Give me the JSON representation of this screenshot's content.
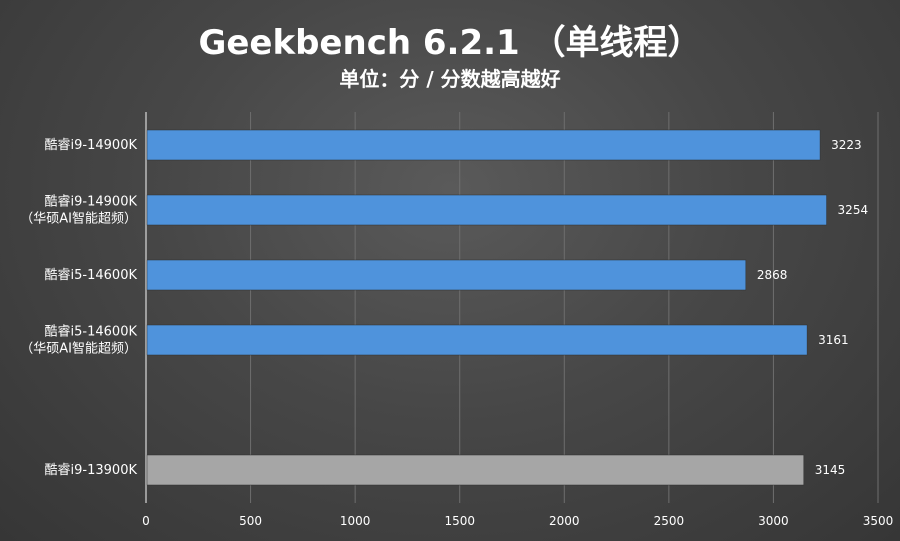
{
  "chart_data": {
    "type": "bar",
    "orientation": "horizontal",
    "title": "Geekbench 6.2.1 （单线程）",
    "subtitle": "单位：分 / 分数越高越好",
    "categories": [
      [
        "酷睿i9-14900K"
      ],
      [
        "酷睿i9-14900K",
        "（华硕AI智能超频）"
      ],
      [
        "酷睿i5-14600K"
      ],
      [
        "酷睿i5-14600K",
        "（华硕AI智能超频）"
      ],
      [],
      [
        "酷睿i9-13900K"
      ]
    ],
    "values": [
      3223,
      3254,
      2868,
      3161,
      null,
      3145
    ],
    "value_labels": [
      "3223",
      "3254",
      "2868",
      "3161",
      "",
      "3145"
    ],
    "bar_colors": [
      "#4f93dc",
      "#4f93dc",
      "#4f93dc",
      "#4f93dc",
      "",
      "#a6a6a6"
    ],
    "xlim": [
      0,
      3500
    ],
    "x_ticks": [
      "0",
      "500",
      "1000",
      "1500",
      "2000",
      "2500",
      "3000",
      "3500"
    ],
    "x_tick_values": [
      0,
      500,
      1000,
      1500,
      2000,
      2500,
      3000,
      3500
    ],
    "grid": "vertical",
    "legend": "none"
  }
}
